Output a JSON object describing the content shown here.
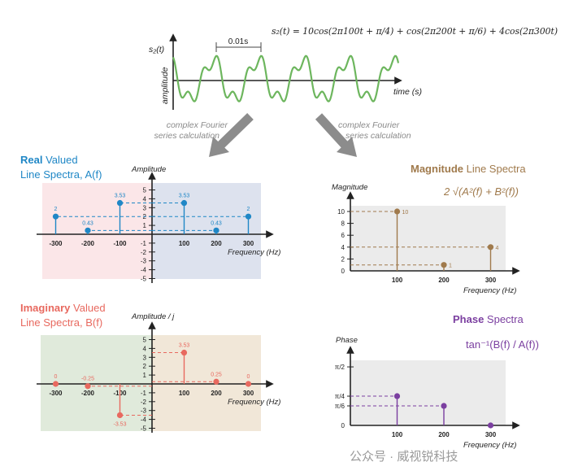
{
  "top": {
    "equation": "s₂(t) = 10cos(2π100t + π/4) + cos(2π200t + π/6) + 4cos(2π300t)",
    "ylabel_signal": "s₂(t)",
    "ylabel": "amplitude",
    "xlabel": "time (s)",
    "period_label": "0.01s",
    "arrow_left_label": [
      "complex Fourier",
      "series calculation"
    ],
    "arrow_right_label": [
      "complex Fourier",
      "series calculation"
    ],
    "wave_color": "#6db65e"
  },
  "watermark": "公众号 · 威视锐科技",
  "chart_data": [
    {
      "id": "real",
      "type": "stem",
      "title_bold": "Real",
      "title_rest": " Valued",
      "subtitle": "Line Spectra, A(f)",
      "ylabel": "Amplitude",
      "xlabel": "Frequency (Hz)",
      "x": [
        -300,
        -200,
        -100,
        100,
        200,
        300
      ],
      "y": [
        2,
        0.43,
        3.53,
        3.53,
        0.43,
        2
      ],
      "labels": [
        "2",
        "0.43",
        "3.53",
        "3.53",
        "0.43",
        "2"
      ],
      "xticks": [
        -300,
        -200,
        -100,
        100,
        200,
        300
      ],
      "yticks": [
        -5,
        -4,
        -3,
        -2,
        -1,
        1,
        2,
        3,
        4,
        5
      ],
      "ytick_labels": [
        "-5",
        "-4",
        "-3",
        "-2",
        "-1",
        "1",
        "2",
        "3",
        "4",
        "5"
      ],
      "ylim": [
        -5,
        5
      ],
      "color": "#1f87c6"
    },
    {
      "id": "imag",
      "type": "stem",
      "title_bold": "Imaginary",
      "title_rest": " Valued",
      "subtitle": "Line Spectra, B(f)",
      "ylabel": "Amplitude / j",
      "xlabel": "Frequency (Hz)",
      "x": [
        -300,
        -200,
        -100,
        100,
        200,
        300
      ],
      "y": [
        0,
        -0.25,
        -3.53,
        3.53,
        0.25,
        0
      ],
      "labels": [
        "0",
        "-0.25",
        "-3.53",
        "3.53",
        "0.25",
        "0"
      ],
      "xticks": [
        -300,
        -200,
        -100,
        100,
        200,
        300
      ],
      "yticks": [
        -5,
        -4,
        -3,
        -2,
        -1,
        1,
        2,
        3,
        4,
        5
      ],
      "ytick_labels": [
        "-5",
        "-4",
        "-3",
        "-2",
        "-1",
        "1",
        "2",
        "3",
        "4",
        "5"
      ],
      "ylim": [
        -5,
        5
      ],
      "color": "#e8695f"
    },
    {
      "id": "magnitude",
      "type": "stem",
      "title_bold": "Magnitude",
      "title_rest": " Line Spectra",
      "formula": "2 √(A²(f) + B²(f))",
      "ylabel": "Magnitude",
      "xlabel": "Frequency (Hz)",
      "x": [
        100,
        200,
        300
      ],
      "y": [
        10,
        1,
        4
      ],
      "labels": [
        "10",
        "1",
        "4"
      ],
      "xticks": [
        100,
        200,
        300
      ],
      "yticks": [
        0,
        2,
        4,
        6,
        8,
        10
      ],
      "ytick_labels": [
        "0",
        "2",
        "4",
        "6",
        "8",
        "10"
      ],
      "ylim": [
        0,
        10
      ],
      "color": "#a07a4c"
    },
    {
      "id": "phase",
      "type": "stem",
      "title_bold": "Phase",
      "title_rest": " Spectra",
      "formula": "tan⁻¹(B(f) / A(f))",
      "ylabel": "Phase",
      "xlabel": "Frequency (Hz)",
      "x": [
        100,
        200,
        300
      ],
      "y": [
        0.7854,
        0.5236,
        0
      ],
      "labels": [],
      "xticks": [
        100,
        200,
        300
      ],
      "yticks": [
        0,
        0.5236,
        0.7854,
        1.5708
      ],
      "ytick_labels": [
        "0",
        "π/6",
        "π/4",
        "π/2"
      ],
      "ylim": [
        0,
        1.5708
      ],
      "color": "#7b3fa0"
    }
  ]
}
